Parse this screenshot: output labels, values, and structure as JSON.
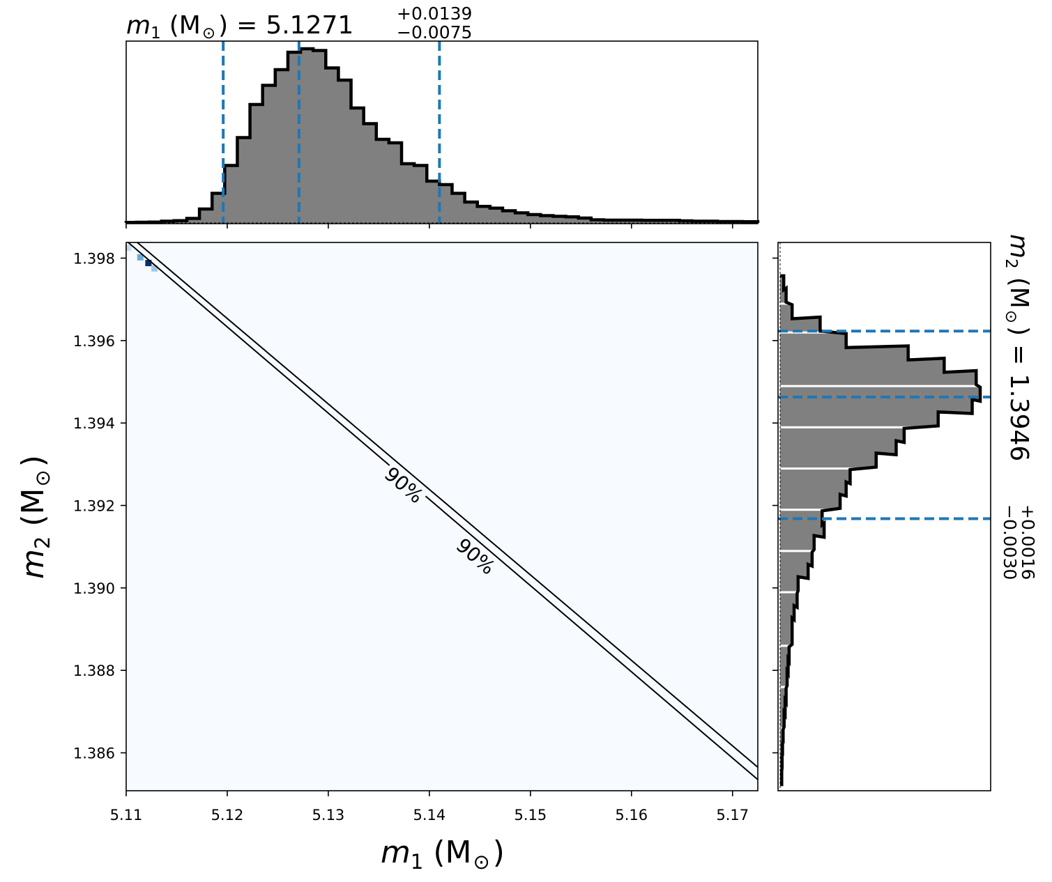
{
  "chart_data": [
    {
      "panel": "top-marginal",
      "type": "histogram",
      "title": {
        "symbol": "m",
        "subscript": "1",
        "unit": "(M",
        "unit_sub": "⊙",
        "unit_close": ")",
        "equals": "=",
        "value": "5.1271",
        "plus": "+0.0139",
        "minus": "−0.0075"
      },
      "xlim": [
        5.11,
        5.1725
      ],
      "bins": {
        "start": 5.1085,
        "width": 0.00125,
        "heights": [
          0.002,
          0.003,
          0.004,
          0.005,
          0.01,
          0.013,
          0.026,
          0.08,
          0.17,
          0.33,
          0.49,
          0.68,
          0.79,
          0.88,
          0.98,
          1.0,
          0.99,
          0.89,
          0.82,
          0.66,
          0.57,
          0.48,
          0.46,
          0.34,
          0.33,
          0.24,
          0.22,
          0.17,
          0.12,
          0.095,
          0.085,
          0.07,
          0.058,
          0.048,
          0.042,
          0.038,
          0.035,
          0.028,
          0.018,
          0.016,
          0.016,
          0.016,
          0.015,
          0.015,
          0.015,
          0.012,
          0.01,
          0.01,
          0.008,
          0.008,
          0.007,
          0.007,
          0.007,
          0.006,
          0.006,
          0.005,
          0.005,
          0.005,
          0.004,
          0.004,
          0.003
        ]
      },
      "quantile_lines": [
        5.1196,
        5.1271,
        5.141
      ],
      "fill_color": "#808080",
      "quantile_color": "#1f77b4"
    },
    {
      "panel": "joint",
      "type": "heatmap",
      "xlabel": {
        "symbol": "m",
        "subscript": "1",
        "unit": "(M",
        "unit_sub": "⊙",
        "unit_close": ")"
      },
      "ylabel": {
        "symbol": "m",
        "subscript": "2",
        "unit": "(M",
        "unit_sub": "⊙",
        "unit_close": ")"
      },
      "xlim": [
        5.11,
        5.1725
      ],
      "ylim": [
        1.38508,
        1.39838
      ],
      "xticks": [
        {
          "value": 5.11,
          "label": "5.11"
        },
        {
          "value": 5.12,
          "label": "5.12"
        },
        {
          "value": 5.13,
          "label": "5.13"
        },
        {
          "value": 5.14,
          "label": "5.14"
        },
        {
          "value": 5.15,
          "label": "5.15"
        },
        {
          "value": 5.16,
          "label": "5.16"
        },
        {
          "value": 5.17,
          "label": "5.17"
        }
      ],
      "yticks": [
        {
          "value": 1.386,
          "label": "1.386"
        },
        {
          "value": 1.388,
          "label": "1.388"
        },
        {
          "value": 1.39,
          "label": "1.390"
        },
        {
          "value": 1.392,
          "label": "1.392"
        },
        {
          "value": 1.394,
          "label": "1.394"
        },
        {
          "value": 1.396,
          "label": "1.396"
        },
        {
          "value": 1.398,
          "label": "1.398"
        }
      ],
      "background_color": "#f7fbff",
      "contour_lines": [
        {
          "level": "90%",
          "from": [
            5.1102,
            1.39838
          ],
          "to": [
            5.1725,
            1.38535
          ]
        },
        {
          "level": "90%",
          "from": [
            5.1111,
            1.39838
          ],
          "to": [
            5.1725,
            1.38565
          ]
        }
      ],
      "contour_labels": [
        {
          "label": "90%",
          "x": 5.1375,
          "y": 1.3925
        },
        {
          "label": "90%",
          "x": 5.1446,
          "y": 1.39077
        }
      ],
      "density_cells": [
        {
          "x": 5.1102,
          "y": 1.39825,
          "color": "#c6dbef"
        },
        {
          "x": 5.1114,
          "y": 1.39802,
          "color": "#6baed6"
        },
        {
          "x": 5.1122,
          "y": 1.39788,
          "color": "#08306b"
        },
        {
          "x": 5.1128,
          "y": 1.39775,
          "color": "#9ecae1"
        }
      ]
    },
    {
      "panel": "right-marginal",
      "type": "histogram",
      "orientation": "horizontal",
      "title": {
        "symbol": "m",
        "subscript": "2",
        "unit": "(M",
        "unit_sub": "⊙",
        "unit_close": ")",
        "equals": "=",
        "value": "1.3946",
        "plus": "+0.0016",
        "minus": "−0.0030"
      },
      "ylim": [
        1.38508,
        1.39838
      ],
      "bins": [
        [
          1.3974,
          0.018
        ],
        [
          1.3971,
          0.03
        ],
        [
          1.3967,
          0.06
        ],
        [
          1.3964,
          0.2
        ],
        [
          1.396,
          0.33
        ],
        [
          1.3957,
          0.64
        ],
        [
          1.3954,
          0.82
        ],
        [
          1.3951,
          0.98
        ],
        [
          1.3947,
          1.0
        ],
        [
          1.3944,
          0.96
        ],
        [
          1.3941,
          0.79
        ],
        [
          1.3937,
          0.62
        ],
        [
          1.3934,
          0.58
        ],
        [
          1.3931,
          0.48
        ],
        [
          1.3927,
          0.35
        ],
        [
          1.3924,
          0.33
        ],
        [
          1.3921,
          0.3
        ],
        [
          1.3917,
          0.21
        ],
        [
          1.3914,
          0.22
        ],
        [
          1.3911,
          0.17
        ],
        [
          1.3907,
          0.16
        ],
        [
          1.3904,
          0.14
        ],
        [
          1.3901,
          0.09
        ],
        [
          1.3897,
          0.085
        ],
        [
          1.3894,
          0.07
        ],
        [
          1.3891,
          0.06
        ],
        [
          1.3888,
          0.06
        ],
        [
          1.3884,
          0.045
        ],
        [
          1.3881,
          0.04
        ],
        [
          1.3878,
          0.035
        ],
        [
          1.3874,
          0.03
        ],
        [
          1.3871,
          0.025
        ],
        [
          1.3868,
          0.02
        ],
        [
          1.3864,
          0.015
        ],
        [
          1.3861,
          0.012
        ],
        [
          1.3858,
          0.01
        ],
        [
          1.3854,
          0.008
        ]
      ],
      "bin_height": 0.00034,
      "quantile_lines": [
        1.39623,
        1.39463,
        1.39168
      ],
      "fill_color": "#808080",
      "quantile_color": "#1f77b4"
    }
  ]
}
